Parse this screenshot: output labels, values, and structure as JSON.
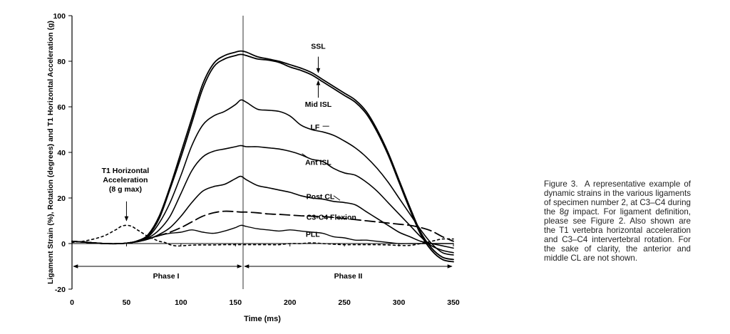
{
  "chart_data": {
    "type": "line",
    "xlabel": "Time (ms)",
    "ylabel": "Ligament Strain (%), Rotation (degrees) and T1 Horizontal Acceleration (g)",
    "xlim": [
      0,
      350
    ],
    "ylim": [
      -20,
      100
    ],
    "xticks": [
      0,
      50,
      100,
      150,
      200,
      250,
      300,
      350
    ],
    "yticks": [
      -20,
      0,
      20,
      40,
      60,
      80,
      100
    ],
    "grid": false,
    "series": [
      {
        "name": "SSL",
        "style": "solid",
        "width": 1.8,
        "color": "#000000",
        "x": [
          0,
          15,
          30,
          45,
          55,
          62,
          70,
          80,
          90,
          100,
          110,
          120,
          130,
          140,
          150,
          155,
          160,
          170,
          180,
          190,
          200,
          210,
          220,
          230,
          240,
          250,
          260,
          270,
          280,
          290,
          300,
          310,
          320,
          330,
          340,
          350
        ],
        "y": [
          1,
          0.5,
          0,
          0,
          0.5,
          1.5,
          4,
          12,
          25,
          40,
          55,
          70,
          79,
          82.5,
          84,
          84.5,
          84,
          82,
          81,
          80,
          78.5,
          77,
          75,
          72,
          69,
          66,
          63,
          58,
          50,
          40,
          28,
          16,
          5,
          -2,
          -6,
          -7
        ]
      },
      {
        "name": "Mid ISL",
        "style": "solid",
        "width": 1.8,
        "color": "#000000",
        "x": [
          0,
          15,
          30,
          45,
          55,
          62,
          70,
          80,
          90,
          100,
          110,
          120,
          130,
          140,
          150,
          155,
          160,
          170,
          180,
          190,
          200,
          210,
          220,
          230,
          240,
          250,
          260,
          270,
          280,
          290,
          300,
          310,
          320,
          330,
          340,
          350
        ],
        "y": [
          1,
          0.5,
          0,
          0,
          0.5,
          1.5,
          3.5,
          11,
          24,
          38,
          53,
          68,
          77.5,
          81,
          82.5,
          83,
          82.5,
          81,
          80.5,
          79.5,
          77.5,
          76,
          74,
          71,
          68,
          65,
          62,
          57,
          49,
          39,
          27,
          15,
          4,
          -3,
          -7,
          -8
        ]
      },
      {
        "name": "LF",
        "style": "solid",
        "width": 1.6,
        "color": "#000000",
        "x": [
          0,
          15,
          30,
          45,
          55,
          62,
          70,
          80,
          90,
          100,
          110,
          120,
          130,
          140,
          150,
          155,
          160,
          170,
          180,
          190,
          200,
          210,
          220,
          230,
          240,
          250,
          260,
          270,
          280,
          290,
          300,
          310,
          320,
          330,
          340,
          350
        ],
        "y": [
          1,
          0.5,
          0,
          0,
          0.5,
          1.5,
          3,
          9,
          18,
          30,
          43,
          52,
          56,
          58,
          61,
          63,
          62,
          59,
          58.5,
          58,
          56,
          52,
          50,
          49,
          47.5,
          45,
          42,
          38,
          33,
          27,
          20,
          13,
          6,
          0,
          -4,
          -5
        ]
      },
      {
        "name": "Ant ISL",
        "style": "solid",
        "width": 1.6,
        "color": "#000000",
        "x": [
          0,
          15,
          30,
          45,
          55,
          62,
          70,
          80,
          90,
          100,
          110,
          120,
          130,
          140,
          150,
          155,
          160,
          170,
          180,
          190,
          200,
          210,
          220,
          230,
          240,
          250,
          260,
          270,
          280,
          290,
          300,
          310,
          320,
          330,
          340,
          350
        ],
        "y": [
          1,
          0.5,
          0,
          0,
          0.5,
          1.5,
          2.5,
          6,
          12,
          22,
          32,
          38,
          40.5,
          41.5,
          42.5,
          43,
          42.5,
          42.5,
          42,
          41.5,
          40.5,
          39,
          37,
          36,
          33,
          31,
          30,
          27,
          23,
          18,
          13,
          8,
          3,
          -1,
          -3,
          -4
        ]
      },
      {
        "name": "Post CL",
        "style": "solid",
        "width": 1.6,
        "color": "#000000",
        "x": [
          0,
          15,
          30,
          45,
          55,
          62,
          70,
          80,
          90,
          100,
          110,
          120,
          130,
          140,
          150,
          155,
          160,
          170,
          180,
          190,
          200,
          210,
          220,
          230,
          240,
          250,
          260,
          270,
          280,
          290,
          300,
          310,
          320,
          330,
          340,
          350
        ],
        "y": [
          1,
          0.5,
          0,
          0,
          0.5,
          1,
          2,
          4,
          7,
          12,
          18,
          23,
          25,
          26,
          28.5,
          29.5,
          28,
          25.5,
          24.5,
          23.5,
          22.5,
          21,
          20,
          19.5,
          18.5,
          18,
          17,
          14,
          11,
          8,
          5,
          3,
          1,
          0,
          -1,
          -2
        ]
      },
      {
        "name": "PLL",
        "style": "solid",
        "width": 1.4,
        "color": "#000000",
        "x": [
          0,
          15,
          30,
          45,
          55,
          62,
          70,
          80,
          90,
          100,
          110,
          120,
          130,
          140,
          150,
          155,
          160,
          170,
          180,
          190,
          200,
          210,
          220,
          230,
          240,
          250,
          260,
          270,
          280,
          290,
          300,
          310,
          320,
          330,
          340,
          350
        ],
        "y": [
          1,
          0.5,
          0,
          0,
          0.5,
          1,
          2,
          3.5,
          4.5,
          5,
          6,
          5,
          4.5,
          5.5,
          7,
          8,
          7.5,
          6.5,
          6,
          5.5,
          6,
          5.5,
          5,
          4.5,
          3,
          2.5,
          1.5,
          1.5,
          1,
          0.5,
          0,
          0,
          0,
          0,
          0,
          0
        ]
      },
      {
        "name": "C3-C4 Flexion",
        "style": "dashed",
        "width": 1.8,
        "color": "#000000",
        "x": [
          0,
          15,
          30,
          45,
          55,
          62,
          70,
          80,
          90,
          100,
          110,
          120,
          130,
          140,
          150,
          155,
          160,
          170,
          180,
          190,
          200,
          210,
          220,
          230,
          240,
          250,
          260,
          270,
          280,
          290,
          300,
          310,
          320,
          330,
          340,
          350
        ],
        "y": [
          1,
          0.5,
          0,
          0,
          0.5,
          1,
          2,
          3.5,
          5,
          7,
          9.5,
          12,
          13.5,
          14.2,
          14,
          13.8,
          13.8,
          13.5,
          13,
          12.8,
          12.5,
          12.2,
          12,
          11.8,
          11.5,
          11,
          10.5,
          10,
          9.5,
          9,
          8.5,
          8,
          7,
          5.5,
          3,
          1
        ]
      },
      {
        "name": "T1 Horizontal Acceleration (8 g max)",
        "style": "dotted",
        "width": 1.6,
        "color": "#000000",
        "x": [
          0,
          10,
          20,
          30,
          40,
          45,
          50,
          55,
          60,
          65,
          70,
          75,
          80,
          85,
          90,
          95,
          100,
          110,
          120,
          130,
          140,
          150,
          160,
          170,
          180,
          190,
          200,
          210,
          220,
          230,
          240,
          250,
          260,
          270,
          280,
          290,
          300,
          310,
          320,
          330,
          340,
          350
        ],
        "y": [
          0.5,
          1,
          2,
          3.5,
          6,
          7.5,
          8,
          7.5,
          6,
          4.5,
          3,
          2,
          1,
          0.5,
          -0.5,
          -1,
          -1,
          -0.7,
          -0.6,
          -0.6,
          -0.5,
          -0.5,
          -0.5,
          -0.5,
          -0.5,
          -0.5,
          0,
          0,
          0.3,
          0,
          -0.3,
          -0.5,
          -0.5,
          -0.5,
          -0.5,
          -0.6,
          -0.8,
          -0.8,
          0,
          1,
          2,
          2
        ]
      }
    ],
    "annotations": {
      "SSL": "SSL",
      "Mid ISL": "Mid ISL",
      "LF": "LF",
      "Ant ISL": "Ant ISL",
      "Post CL": "Post CL",
      "C3-C4 Flexion": "C3-C4 Flexion",
      "PLL": "PLL",
      "t1_lines": [
        "T1 Horizontal",
        "Acceleration",
        "(8 g max)"
      ],
      "phase1": "Phase I",
      "phase2": "Phase II"
    },
    "phase_boundary_x": 157,
    "phase_arrow_y": -10
  },
  "caption_html": "Figure 3.&nbsp; A representative example of dynamic strains in the various ligaments of specimen number 2, at C3–C4 during the 8<i>g</i> impact. For ligament definition, please see Figure 2. Also shown are the T1 vertebra horizontal acceleration and C3–C4 intervertebral rotation. For the sake of clarity, the anterior and middle CL are not shown.",
  "caption": "Figure 3. A representative example of dynamic strains in the various ligaments of specimen number 2, at C3–C4 during the 8g impact. For ligament definition, please see Figure 2. Also shown are the T1 vertebra horizontal acceleration and C3–C4 intervertebral rotation. For the sake of clarity, the anterior and middle CL are not shown."
}
